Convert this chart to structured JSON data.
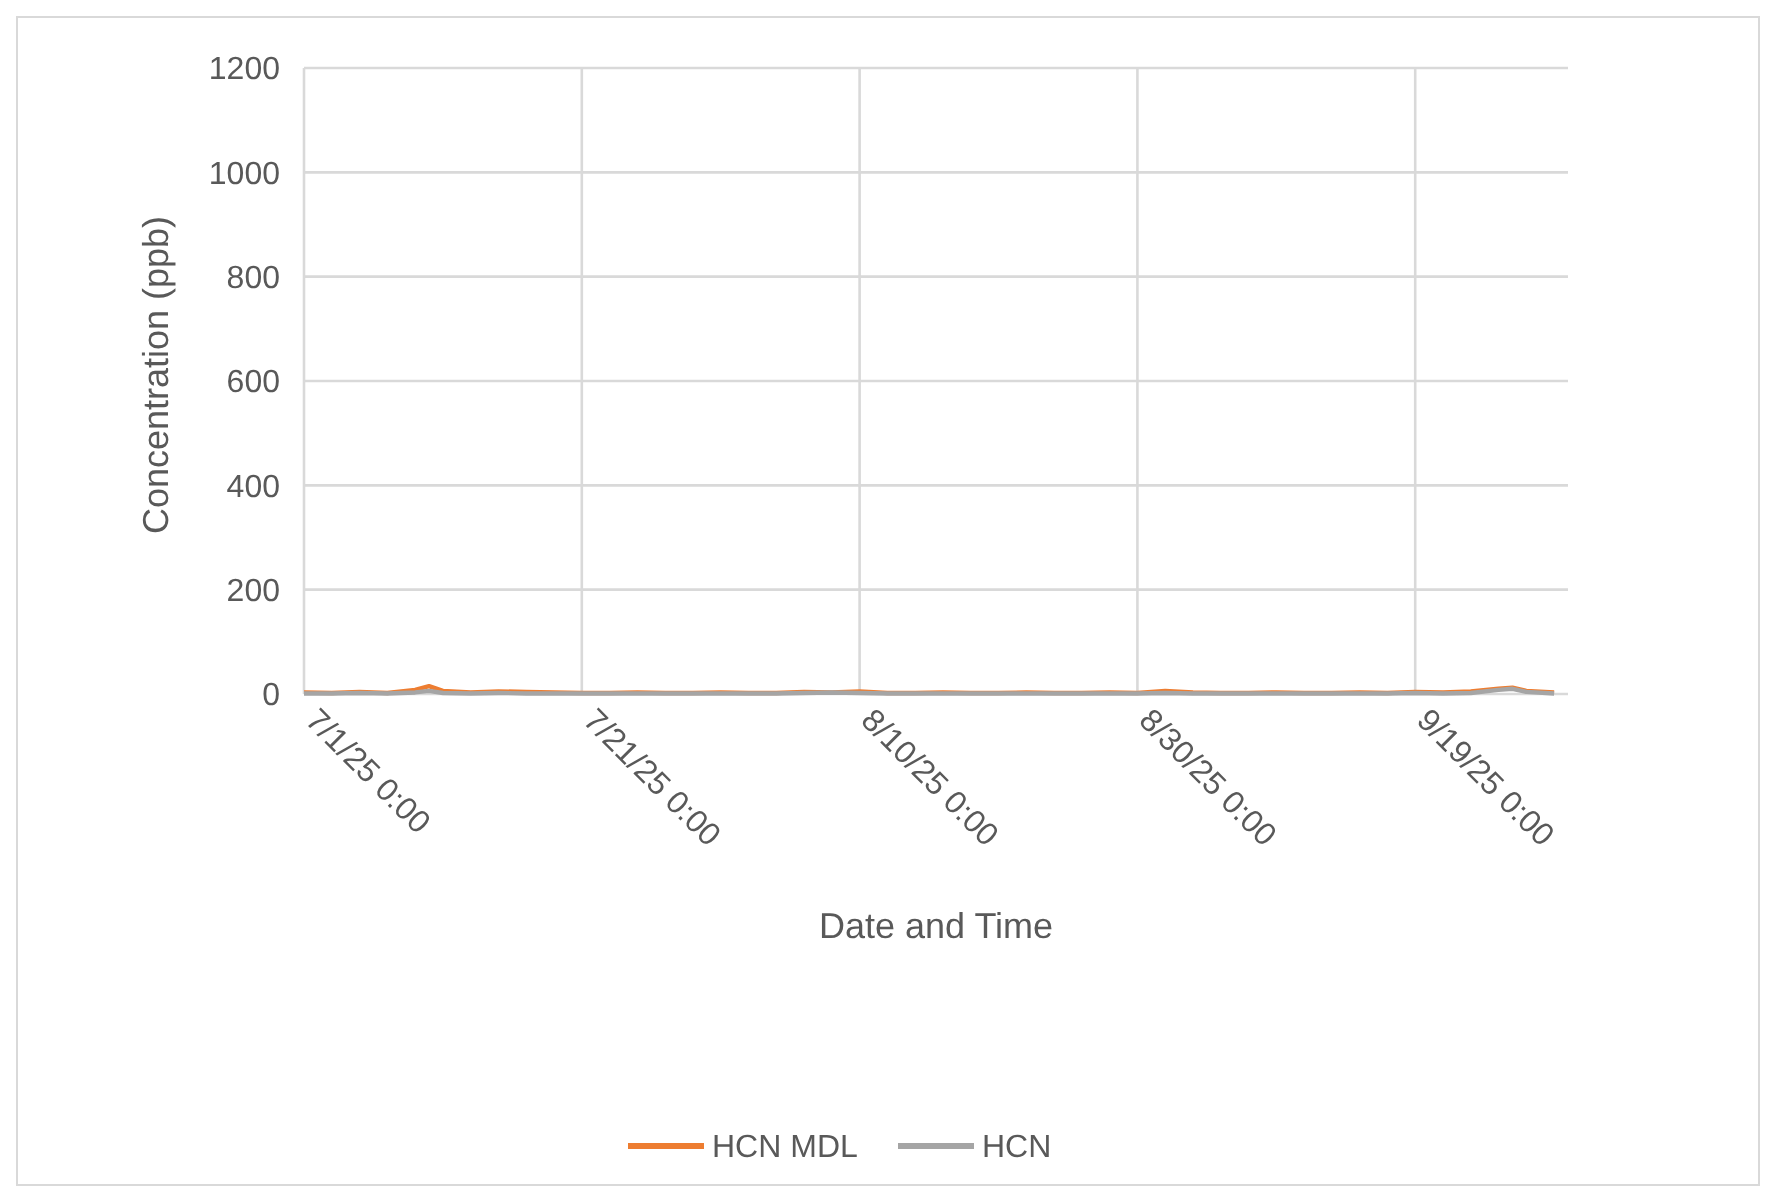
{
  "chart_data": {
    "type": "line",
    "xlabel": "Date and Time",
    "ylabel": "Concentration (ppb)",
    "x": [
      "2025-07-01",
      "2025-07-03",
      "2025-07-05",
      "2025-07-07",
      "2025-07-09",
      "2025-07-10",
      "2025-07-11",
      "2025-07-13",
      "2025-07-15",
      "2025-07-17",
      "2025-07-19",
      "2025-07-21",
      "2025-07-23",
      "2025-07-25",
      "2025-07-27",
      "2025-07-29",
      "2025-07-31",
      "2025-08-02",
      "2025-08-04",
      "2025-08-06",
      "2025-08-08",
      "2025-08-10",
      "2025-08-12",
      "2025-08-14",
      "2025-08-16",
      "2025-08-18",
      "2025-08-20",
      "2025-08-22",
      "2025-08-24",
      "2025-08-26",
      "2025-08-28",
      "2025-08-30",
      "2025-09-01",
      "2025-09-03",
      "2025-09-05",
      "2025-09-07",
      "2025-09-09",
      "2025-09-11",
      "2025-09-13",
      "2025-09-15",
      "2025-09-17",
      "2025-09-19",
      "2025-09-21",
      "2025-09-23",
      "2025-09-25",
      "2025-09-26",
      "2025-09-27",
      "2025-09-29"
    ],
    "series": [
      {
        "name": "HCN MDL",
        "color": "#ed7d31",
        "values": [
          3,
          2,
          4,
          2,
          8,
          15,
          6,
          3,
          5,
          4,
          3,
          2,
          2,
          3,
          2,
          2,
          3,
          2,
          2,
          4,
          3,
          5,
          2,
          2,
          3,
          2,
          2,
          3,
          2,
          2,
          3,
          2,
          6,
          3,
          2,
          2,
          3,
          2,
          2,
          3,
          2,
          4,
          3,
          5,
          10,
          12,
          6,
          3
        ]
      },
      {
        "name": "HCN",
        "color": "#a5a5a5",
        "values": [
          1,
          1,
          2,
          1,
          3,
          6,
          2,
          1,
          2,
          1,
          1,
          1,
          1,
          1,
          1,
          1,
          1,
          1,
          1,
          2,
          3,
          2,
          1,
          1,
          1,
          1,
          1,
          1,
          1,
          1,
          1,
          1,
          2,
          1,
          1,
          1,
          1,
          1,
          1,
          1,
          1,
          2,
          1,
          2,
          8,
          10,
          4,
          1
        ]
      }
    ],
    "xlim": [
      "2025-07-01",
      "2025-09-30"
    ],
    "xticks": [
      {
        "value": "2025-07-01",
        "label": "7/1/25 0:00"
      },
      {
        "value": "2025-07-21",
        "label": "7/21/25 0:00"
      },
      {
        "value": "2025-08-10",
        "label": "8/10/25 0:00"
      },
      {
        "value": "2025-08-30",
        "label": "8/30/25 0:00"
      },
      {
        "value": "2025-09-19",
        "label": "9/19/25 0:00"
      }
    ],
    "ylim": [
      0,
      1200
    ],
    "yticks": [
      0,
      200,
      400,
      600,
      800,
      1000,
      1200
    ],
    "grid": true,
    "legend": "bottom"
  }
}
